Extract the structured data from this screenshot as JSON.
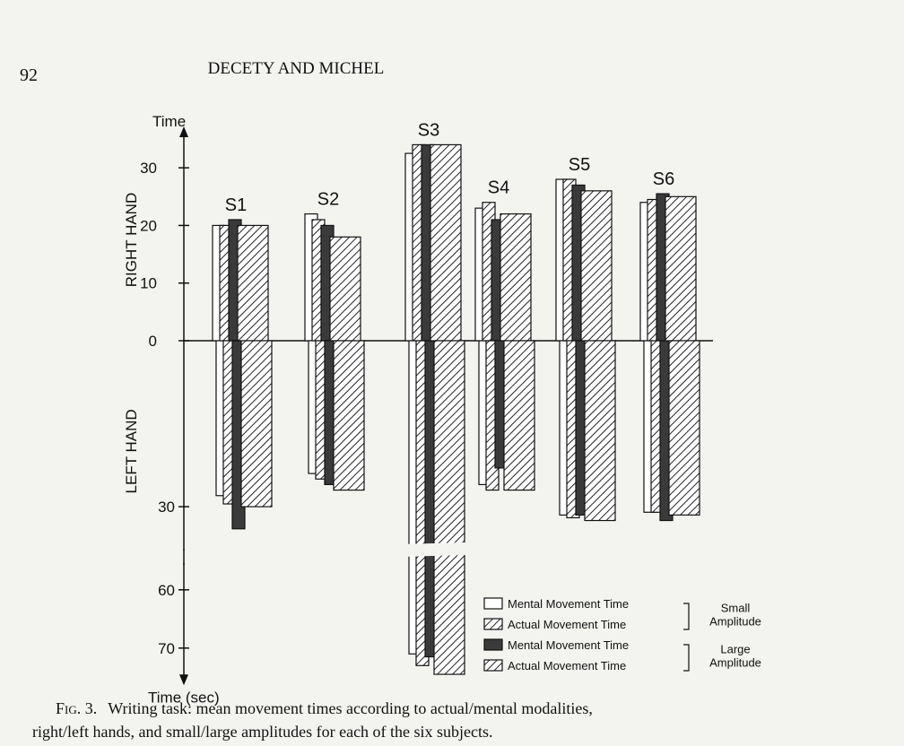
{
  "header": {
    "page_number": "92",
    "running_title": "DECETY AND MICHEL"
  },
  "chart_data": {
    "type": "butterfly-bar",
    "y_label": "Time",
    "y_label_end": "Time (sec)",
    "upper_label": "RIGHT HAND",
    "lower_label": "LEFT HAND",
    "categories": [
      "S1",
      "S2",
      "S3",
      "S4",
      "S5",
      "S6"
    ],
    "series": [
      {
        "name": "Mental Movement Time",
        "group": "Small Amplitude",
        "color": "#ffffff",
        "hatch": false,
        "values": [
          20,
          22,
          32.5,
          23,
          28,
          24
        ],
        "values_left": [
          28,
          24,
          71,
          26,
          31.5,
          31
        ]
      },
      {
        "name": "Actual Movement Time",
        "group": "Small Amplitude",
        "color": "#ffffff",
        "hatch": true,
        "values": [
          20,
          21,
          34,
          24,
          28,
          24.5
        ],
        "values_left": [
          29.5,
          25,
          73,
          27,
          32,
          31
        ]
      },
      {
        "name": "Mental Movement Time",
        "group": "Large Amplitude",
        "color": "#3a3a3a",
        "hatch": false,
        "values": [
          21,
          20,
          34,
          21,
          27,
          25.5
        ],
        "values_left": [
          34,
          26,
          71.5,
          23,
          31.5,
          32.5
        ]
      },
      {
        "name": "Actual Movement Time",
        "group": "Large Amplitude",
        "color": "#ffffff",
        "hatch": true,
        "values": [
          20,
          18,
          34,
          22,
          26,
          25
        ],
        "values_left": [
          30,
          27,
          74.5,
          27,
          32.5,
          31.5
        ]
      }
    ],
    "ylim": [
      0,
      35
    ],
    "yticks": [
      0,
      10,
      20,
      30
    ],
    "ylim_left": [
      0,
      75
    ],
    "yticks_left": [
      30,
      60,
      70
    ],
    "y_break_left": [
      37,
      57
    ]
  },
  "caption": {
    "label": "Fig. 3.",
    "lines": [
      "Writing task: mean movement times according to actual/mental modalities,",
      "right/left hands, and small/large amplitudes for each of the six subjects."
    ]
  }
}
